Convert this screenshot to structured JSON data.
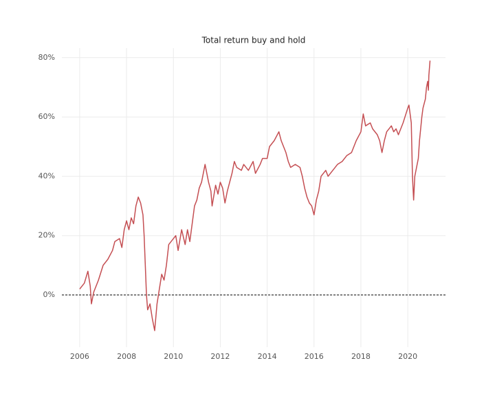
{
  "chart_data": {
    "type": "line",
    "title": "Total return buy and hold",
    "x": [
      2006.0,
      2006.2,
      2006.35,
      2006.45,
      2006.5,
      2006.6,
      2006.8,
      2007.0,
      2007.2,
      2007.4,
      2007.5,
      2007.7,
      2007.8,
      2007.9,
      2008.0,
      2008.1,
      2008.2,
      2008.3,
      2008.4,
      2008.5,
      2008.6,
      2008.7,
      2008.75,
      2008.8,
      2008.85,
      2008.9,
      2009.0,
      2009.1,
      2009.2,
      2009.3,
      2009.4,
      2009.5,
      2009.6,
      2009.7,
      2009.8,
      2010.0,
      2010.1,
      2010.2,
      2010.35,
      2010.5,
      2010.6,
      2010.7,
      2010.8,
      2010.9,
      2011.0,
      2011.1,
      2011.2,
      2011.3,
      2011.35,
      2011.5,
      2011.6,
      2011.65,
      2011.8,
      2011.9,
      2012.0,
      2012.1,
      2012.2,
      2012.3,
      2012.4,
      2012.5,
      2012.6,
      2012.7,
      2012.9,
      2013.0,
      2013.2,
      2013.4,
      2013.5,
      2013.7,
      2013.8,
      2014.0,
      2014.1,
      2014.3,
      2014.5,
      2014.6,
      2014.8,
      2014.9,
      2015.0,
      2015.2,
      2015.4,
      2015.5,
      2015.6,
      2015.7,
      2015.8,
      2015.9,
      2016.0,
      2016.1,
      2016.2,
      2016.3,
      2016.5,
      2016.6,
      2016.8,
      2017.0,
      2017.2,
      2017.4,
      2017.6,
      2017.8,
      2018.0,
      2018.1,
      2018.2,
      2018.4,
      2018.5,
      2018.7,
      2018.8,
      2018.9,
      2019.0,
      2019.1,
      2019.3,
      2019.4,
      2019.5,
      2019.6,
      2019.8,
      2020.0,
      2020.05,
      2020.15,
      2020.2,
      2020.25,
      2020.3,
      2020.45,
      2020.5,
      2020.6,
      2020.65,
      2020.75,
      2020.8,
      2020.85,
      2020.88,
      2020.9,
      2020.95
    ],
    "series": [
      {
        "color": "#c44e52",
        "values": [
          2,
          4,
          8,
          3,
          -3,
          1,
          5,
          10,
          12,
          15,
          18,
          19,
          16,
          22,
          25,
          22,
          26,
          24,
          30,
          33,
          31,
          27,
          20,
          10,
          0,
          -5,
          -3,
          -8,
          -12,
          -3,
          2,
          7,
          5,
          10,
          17,
          19,
          20,
          15,
          22,
          17,
          22,
          18,
          24,
          30,
          32,
          36,
          38,
          42,
          44,
          38,
          35,
          30,
          37,
          34,
          38,
          36,
          31,
          35,
          38,
          41,
          45,
          43,
          42,
          44,
          42,
          45,
          41,
          44,
          46,
          46,
          50,
          52,
          55,
          52,
          48,
          45,
          43,
          44,
          43,
          40,
          36,
          33,
          31,
          30,
          27,
          32,
          35,
          40,
          42,
          40,
          42,
          44,
          45,
          47,
          48,
          52,
          55,
          61,
          57,
          58,
          56,
          54,
          52,
          48,
          52,
          55,
          57,
          55,
          56,
          54,
          58,
          63,
          64,
          58,
          40,
          32,
          40,
          46,
          52,
          60,
          63,
          66,
          70,
          72,
          69,
          74,
          79
        ]
      }
    ],
    "xlim": [
      2005.24,
      2021.61
    ],
    "xticks": [
      2006,
      2008,
      2010,
      2012,
      2014,
      2016,
      2018,
      2020
    ],
    "ylim": [
      -17.6,
      83.2
    ],
    "yticks": [
      {
        "value": 0,
        "label": "0%"
      },
      {
        "value": 20,
        "label": "20%"
      },
      {
        "value": 40,
        "label": "40%"
      },
      {
        "value": 60,
        "label": "60%"
      },
      {
        "value": 80,
        "label": "80%"
      }
    ],
    "reference_line": 0,
    "grid": true
  }
}
